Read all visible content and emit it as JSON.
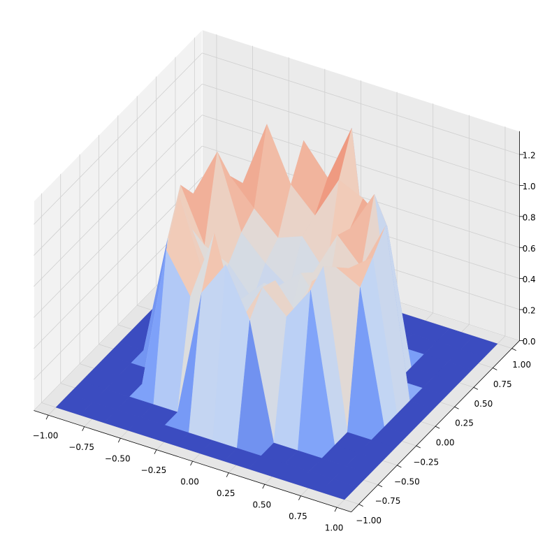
{
  "chart_data": {
    "type": "surface3d",
    "x": [
      -1,
      -0.8333,
      -0.6667,
      -0.5,
      -0.3333,
      -0.1667,
      0,
      0.1667,
      0.3333,
      0.5,
      0.6667,
      0.8333,
      1
    ],
    "y": [
      -1,
      -0.8333,
      -0.6667,
      -0.5,
      -0.3333,
      -0.1667,
      0,
      0.1667,
      0.3333,
      0.5,
      0.6667,
      0.8333,
      1
    ],
    "z": [
      [
        0,
        0,
        0,
        0,
        0,
        0,
        0,
        0,
        0,
        0,
        0,
        0,
        0
      ],
      [
        0,
        0,
        0,
        0,
        0,
        0,
        0,
        0,
        0,
        0,
        0,
        0,
        0
      ],
      [
        0,
        0,
        0,
        0,
        0,
        0.82,
        1.05,
        0.74,
        0,
        0,
        0,
        0,
        0
      ],
      [
        0,
        0,
        0,
        0.91,
        0.66,
        1.12,
        0.58,
        0.87,
        0.73,
        0.95,
        0,
        0,
        0
      ],
      [
        0,
        0,
        0,
        1.18,
        0.72,
        0.61,
        0.49,
        0.83,
        0.64,
        1.02,
        0,
        0,
        0
      ],
      [
        0,
        0,
        0.77,
        0.88,
        0.55,
        0.52,
        0.68,
        0.47,
        0.79,
        0.93,
        0.85,
        0,
        0
      ],
      [
        0,
        0,
        1.03,
        0.69,
        0.62,
        0.44,
        0.57,
        0.71,
        0.51,
        0.84,
        0.96,
        0,
        0
      ],
      [
        0,
        0,
        0.89,
        1.21,
        0.74,
        0.59,
        0.48,
        0.63,
        0.92,
        0.76,
        1.08,
        0,
        0
      ],
      [
        0,
        0,
        0,
        0.97,
        0.81,
        0.67,
        0.73,
        0.54,
        0.88,
        1.15,
        0,
        0,
        0
      ],
      [
        0,
        0,
        0,
        0.84,
        1.27,
        0.93,
        0.78,
        1.06,
        0.99,
        0.86,
        0,
        0,
        0
      ],
      [
        0,
        0,
        0,
        0,
        0,
        1.13,
        0.94,
        1.31,
        0,
        0,
        0,
        0,
        0
      ],
      [
        0,
        0,
        0,
        0,
        0,
        0,
        0,
        0,
        0,
        0,
        0,
        0,
        0
      ],
      [
        0,
        0,
        0,
        0,
        0,
        0,
        0,
        0,
        0,
        0,
        0,
        0,
        0
      ]
    ],
    "colormap": [
      "#3b4cc0",
      "#7b9ff9",
      "#c0d4f5",
      "#dddddd",
      "#f2cbb7",
      "#ee8468",
      "#b40426"
    ],
    "xlim": [
      -1,
      1
    ],
    "ylim": [
      -1,
      1
    ],
    "zlim": [
      0,
      1.35
    ],
    "xticks": [
      {
        "value": -1,
        "label": "−1.00"
      },
      {
        "value": -0.75,
        "label": "−0.75"
      },
      {
        "value": -0.5,
        "label": "−0.50"
      },
      {
        "value": -0.25,
        "label": "−0.25"
      },
      {
        "value": 0,
        "label": "0.00"
      },
      0.25,
      {
        "value": 0.5,
        "label": "0.50"
      },
      0.75,
      {
        "value": 1,
        "label": "1.00"
      }
    ],
    "yticks": [
      {
        "value": -1,
        "label": "−1.00"
      },
      {
        "value": -0.75,
        "label": "−0.75"
      },
      {
        "value": -0.5,
        "label": "−0.50"
      },
      {
        "value": -0.25,
        "label": "−0.25"
      },
      {
        "value": 0,
        "label": "0.00"
      },
      0.25,
      {
        "value": 0.5,
        "label": "0.50"
      },
      0.75,
      {
        "value": 1,
        "label": "1.00"
      }
    ],
    "zticks": [
      {
        "value": 0,
        "label": "0.0"
      },
      0.2,
      0.4,
      0.6,
      0.8,
      {
        "value": 1,
        "label": "1.0"
      },
      1.2
    ],
    "grid": true
  }
}
